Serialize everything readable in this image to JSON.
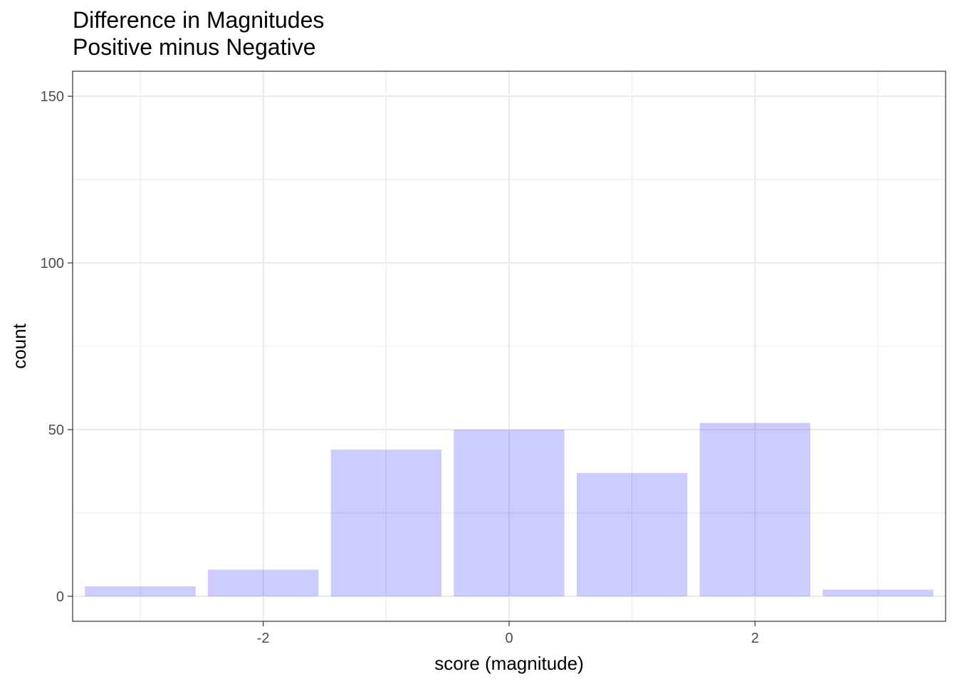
{
  "chart_data": {
    "type": "bar",
    "title": "Difference in Magnitudes",
    "subtitle": "Positive minus Negative",
    "xlabel": "score (magnitude)",
    "ylabel": "count",
    "x": [
      -3,
      -2,
      -1,
      0,
      1,
      2,
      3
    ],
    "values": [
      3,
      8,
      44,
      50,
      37,
      52,
      2
    ],
    "xlim": [
      -3.55,
      3.55
    ],
    "ylim": [
      -7.5,
      157.5
    ],
    "x_ticks": [
      -2,
      0,
      2
    ],
    "x_tick_labels": [
      "-2",
      "0",
      "2"
    ],
    "y_ticks": [
      0,
      50,
      100,
      150
    ],
    "y_tick_labels": [
      "0",
      "50",
      "100",
      "150"
    ],
    "grid": true,
    "bar_color": "#0000ff",
    "bar_opacity": 0.2,
    "grid_color": "#ebebeb",
    "panel_border_color": "#333333"
  }
}
